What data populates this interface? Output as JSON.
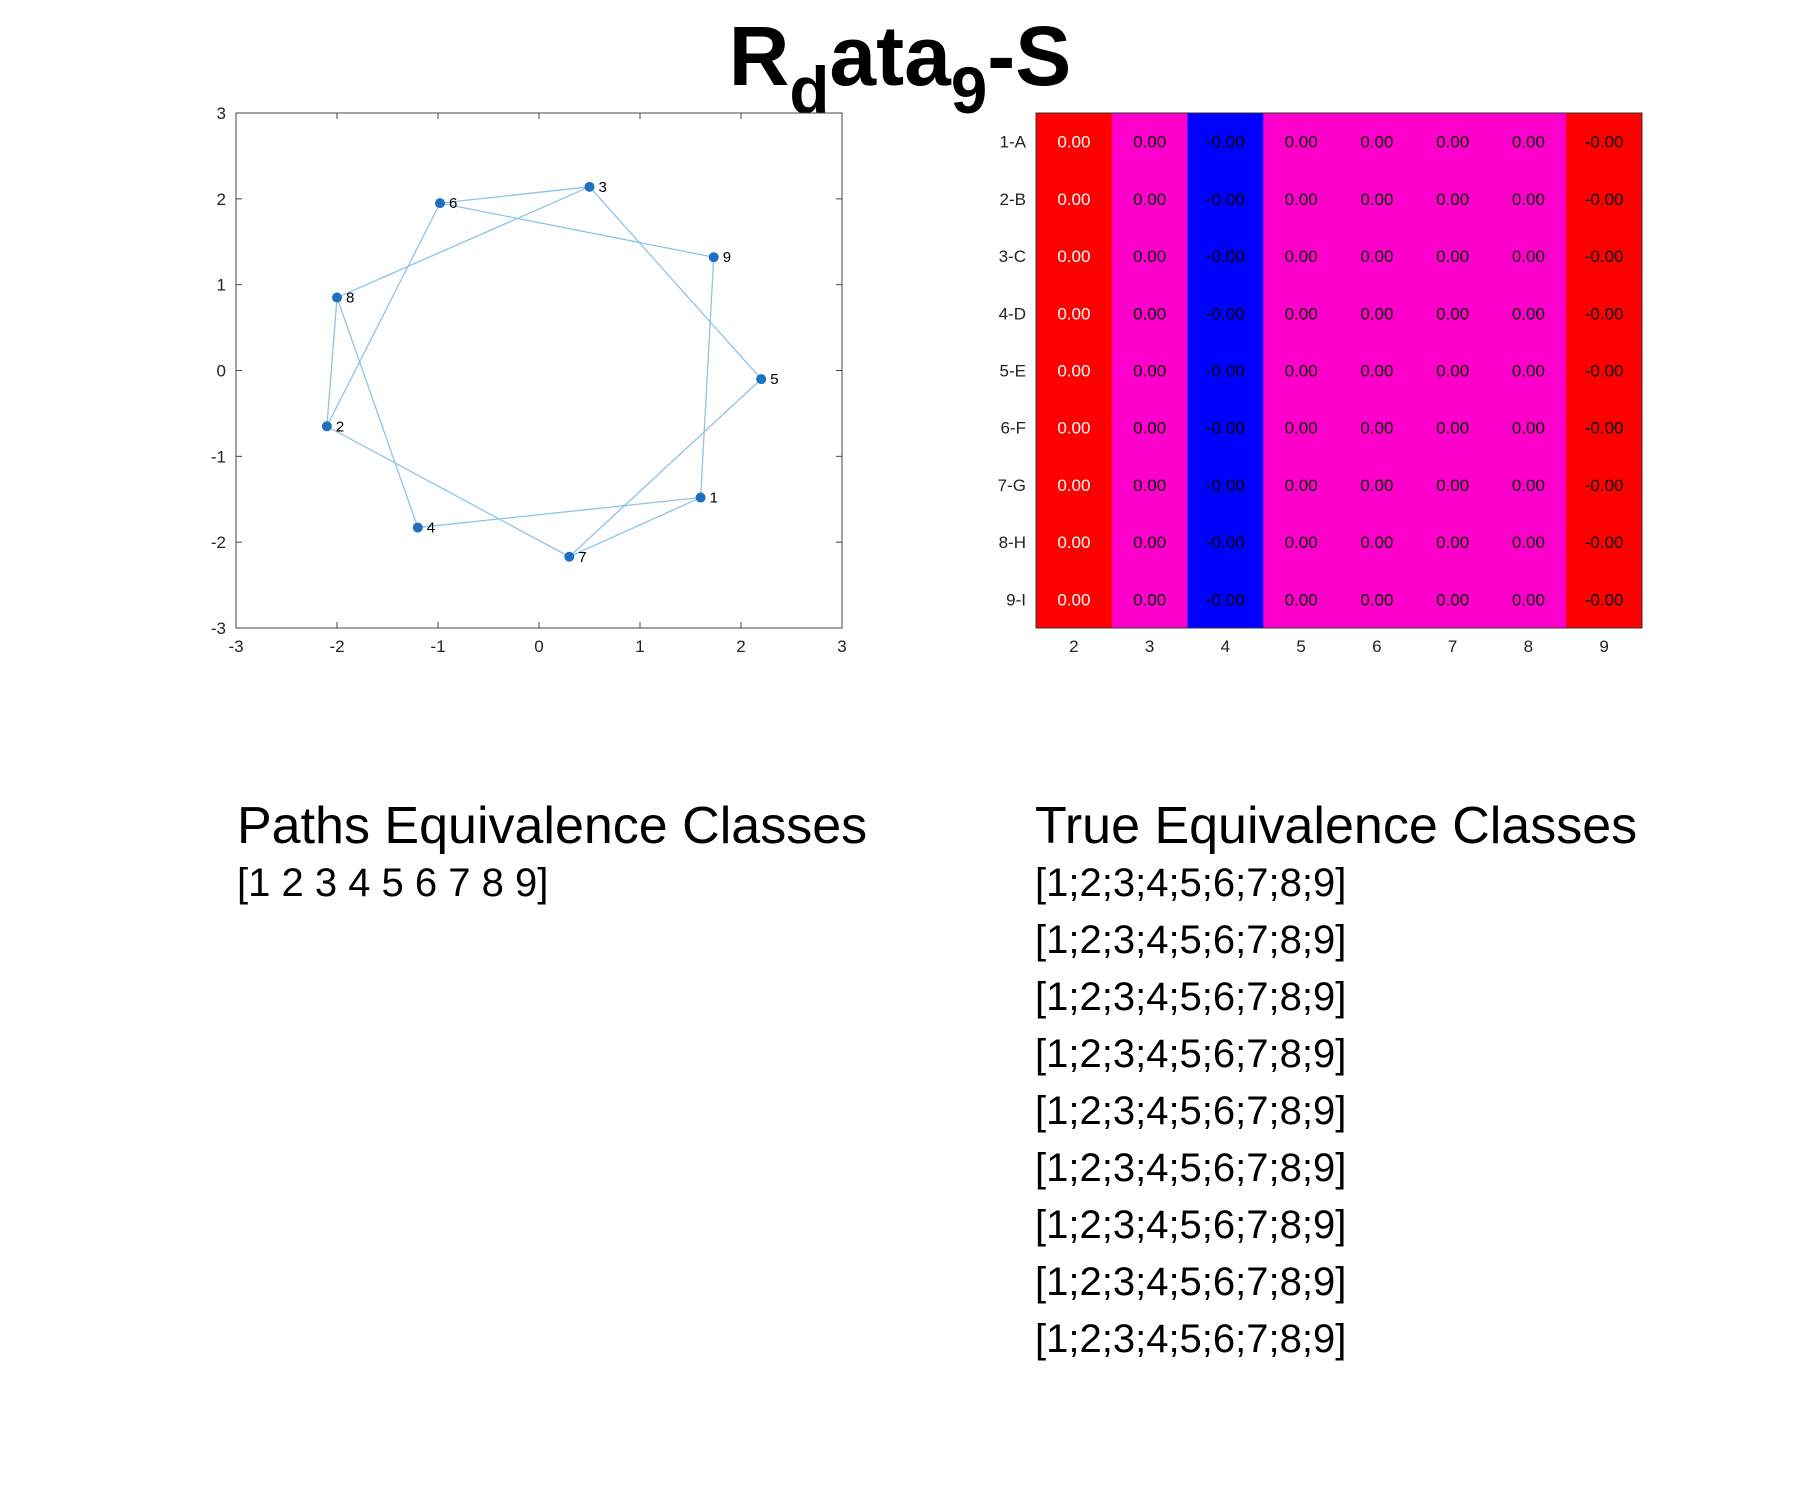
{
  "title": {
    "main": "R",
    "sub1": "d",
    "mid": "ata",
    "sub2": "9",
    "tail": "-S"
  },
  "chart_data": [
    {
      "type": "scatter",
      "title": "",
      "xlabel": "",
      "ylabel": "",
      "xlim": [
        -3,
        3
      ],
      "ylim": [
        -3,
        3
      ],
      "xticks": [
        "-3",
        "-2",
        "-1",
        "0",
        "1",
        "2",
        "3"
      ],
      "yticks": [
        "-3",
        "-2",
        "-1",
        "0",
        "1",
        "2",
        "3"
      ],
      "grid": false,
      "point_color": "#1f6fc2",
      "edge_color": "#8fc3e6",
      "nodes": [
        {
          "label": "1",
          "x": 1.6,
          "y": -1.48
        },
        {
          "label": "2",
          "x": -2.1,
          "y": -0.65
        },
        {
          "label": "3",
          "x": 0.5,
          "y": 2.14
        },
        {
          "label": "4",
          "x": -1.2,
          "y": -1.83
        },
        {
          "label": "5",
          "x": 2.2,
          "y": -0.1
        },
        {
          "label": "6",
          "x": -0.98,
          "y": 1.95
        },
        {
          "label": "7",
          "x": 0.3,
          "y": -2.17
        },
        {
          "label": "8",
          "x": -2.0,
          "y": 0.85
        },
        {
          "label": "9",
          "x": 1.73,
          "y": 1.32
        }
      ],
      "edges": [
        [
          "1",
          "4"
        ],
        [
          "1",
          "7"
        ],
        [
          "1",
          "9"
        ],
        [
          "2",
          "6"
        ],
        [
          "2",
          "7"
        ],
        [
          "2",
          "8"
        ],
        [
          "3",
          "6"
        ],
        [
          "3",
          "5"
        ],
        [
          "3",
          "8"
        ],
        [
          "4",
          "8"
        ],
        [
          "5",
          "7"
        ],
        [
          "6",
          "9"
        ]
      ]
    },
    {
      "type": "heatmap",
      "title": "",
      "row_labels": [
        "1-A",
        "2-B",
        "3-C",
        "4-D",
        "5-E",
        "6-F",
        "7-G",
        "8-H",
        "9-I"
      ],
      "col_labels": [
        "2",
        "3",
        "4",
        "5",
        "6",
        "7",
        "8",
        "9"
      ],
      "column_colors": [
        "#ff0000",
        "#ff00cc",
        "#0000ff",
        "#ff00cc",
        "#ff00cc",
        "#ff00cc",
        "#ff00cc",
        "#ff0000"
      ],
      "column_text_colors": [
        "#ffffff",
        "#000000",
        "#000000",
        "#000000",
        "#000000",
        "#000000",
        "#000000",
        "#000000"
      ],
      "cell_text": [
        "0.00",
        "0.00",
        "-0.00",
        "0.00",
        "0.00",
        "0.00",
        "0.00",
        "-0.00"
      ]
    }
  ],
  "paths_panel": {
    "heading": "Paths Equivalence Classes",
    "rows": [
      "[1 2 3 4 5 6 7 8 9]"
    ]
  },
  "true_panel": {
    "heading": "True Equivalence Classes",
    "rows": [
      "[1;2;3;4;5;6;7;8;9]",
      "[1;2;3;4;5;6;7;8;9]",
      "[1;2;3;4;5;6;7;8;9]",
      "[1;2;3;4;5;6;7;8;9]",
      "[1;2;3;4;5;6;7;8;9]",
      "[1;2;3;4;5;6;7;8;9]",
      "[1;2;3;4;5;6;7;8;9]",
      "[1;2;3;4;5;6;7;8;9]",
      "[1;2;3;4;5;6;7;8;9]"
    ]
  }
}
